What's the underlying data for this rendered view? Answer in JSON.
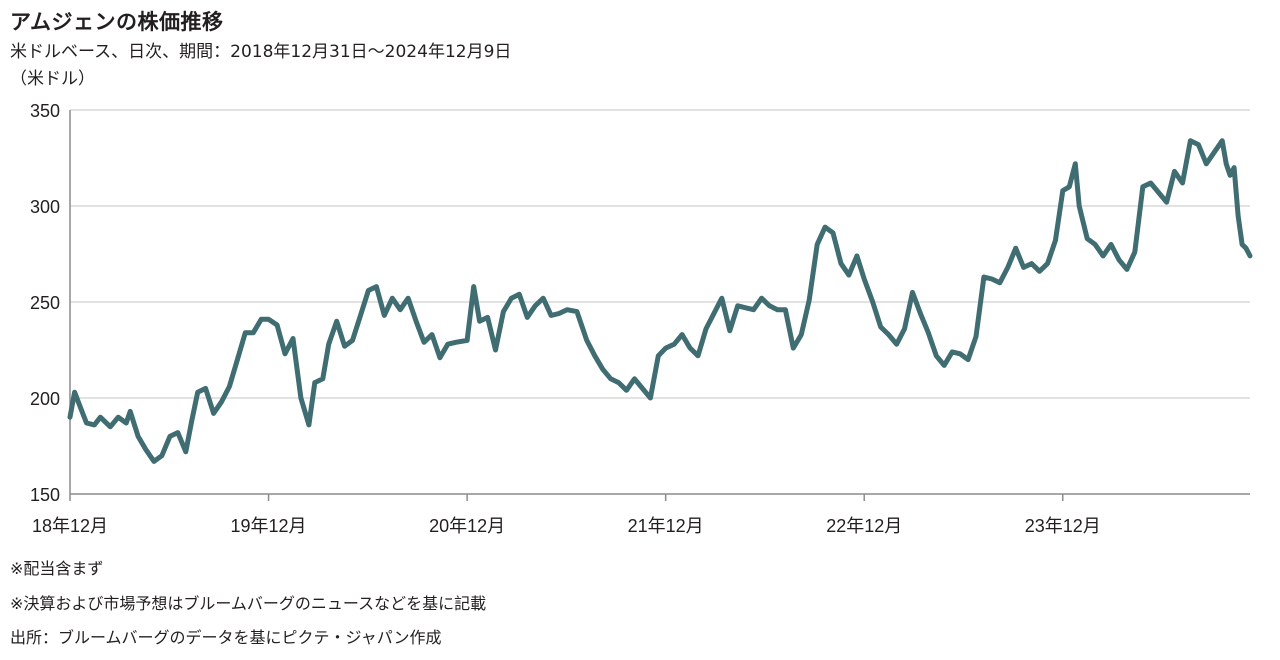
{
  "chart_data": {
    "type": "line",
    "title": "アムジェンの株価推移",
    "subtitle": "米ドルベース、日次、期間：2018年12月31日〜2024年12月9日",
    "ylabel": "（米ドル）",
    "xlabel": "",
    "ylim": [
      150,
      350
    ],
    "yticks": [
      150,
      200,
      250,
      300,
      350
    ],
    "xlim": [
      2018.997,
      2024.94
    ],
    "xticks": [
      {
        "pos": 2018.997,
        "label": "18年12月"
      },
      {
        "pos": 2019.997,
        "label": "19年12月"
      },
      {
        "pos": 2020.997,
        "label": "20年12月"
      },
      {
        "pos": 2021.997,
        "label": "21年12月"
      },
      {
        "pos": 2022.997,
        "label": "22年12月"
      },
      {
        "pos": 2023.997,
        "label": "23年12月"
      }
    ],
    "grid": "horizontal",
    "colors": {
      "line": "#3f6d72",
      "grid": "#d9d9d9",
      "axis": "#8c8c8c"
    },
    "series": [
      {
        "name": "",
        "points": [
          [
            2018.997,
            190
          ],
          [
            2019.02,
            203
          ],
          [
            2019.05,
            195
          ],
          [
            2019.08,
            187
          ],
          [
            2019.12,
            186
          ],
          [
            2019.15,
            190
          ],
          [
            2019.2,
            185
          ],
          [
            2019.24,
            190
          ],
          [
            2019.28,
            187
          ],
          [
            2019.3,
            193
          ],
          [
            2019.34,
            180
          ],
          [
            2019.38,
            173
          ],
          [
            2019.42,
            167
          ],
          [
            2019.46,
            170
          ],
          [
            2019.5,
            180
          ],
          [
            2019.54,
            182
          ],
          [
            2019.58,
            172
          ],
          [
            2019.61,
            188
          ],
          [
            2019.64,
            203
          ],
          [
            2019.68,
            205
          ],
          [
            2019.72,
            192
          ],
          [
            2019.76,
            198
          ],
          [
            2019.8,
            206
          ],
          [
            2019.84,
            220
          ],
          [
            2019.88,
            234
          ],
          [
            2019.92,
            234
          ],
          [
            2019.96,
            241
          ],
          [
            2019.997,
            241
          ],
          [
            2020.04,
            238
          ],
          [
            2020.08,
            223
          ],
          [
            2020.12,
            231
          ],
          [
            2020.16,
            200
          ],
          [
            2020.2,
            186
          ],
          [
            2020.23,
            208
          ],
          [
            2020.27,
            210
          ],
          [
            2020.3,
            228
          ],
          [
            2020.34,
            240
          ],
          [
            2020.38,
            227
          ],
          [
            2020.42,
            230
          ],
          [
            2020.46,
            243
          ],
          [
            2020.5,
            256
          ],
          [
            2020.54,
            258
          ],
          [
            2020.58,
            243
          ],
          [
            2020.62,
            252
          ],
          [
            2020.66,
            246
          ],
          [
            2020.7,
            252
          ],
          [
            2020.74,
            240
          ],
          [
            2020.78,
            229
          ],
          [
            2020.82,
            233
          ],
          [
            2020.86,
            221
          ],
          [
            2020.9,
            228
          ],
          [
            2020.94,
            229
          ],
          [
            2020.997,
            230
          ],
          [
            2021.03,
            258
          ],
          [
            2021.06,
            240
          ],
          [
            2021.1,
            242
          ],
          [
            2021.14,
            225
          ],
          [
            2021.18,
            245
          ],
          [
            2021.22,
            252
          ],
          [
            2021.26,
            254
          ],
          [
            2021.3,
            242
          ],
          [
            2021.34,
            248
          ],
          [
            2021.38,
            252
          ],
          [
            2021.42,
            243
          ],
          [
            2021.46,
            244
          ],
          [
            2021.5,
            246
          ],
          [
            2021.55,
            245
          ],
          [
            2021.6,
            230
          ],
          [
            2021.64,
            222
          ],
          [
            2021.68,
            215
          ],
          [
            2021.72,
            210
          ],
          [
            2021.76,
            208
          ],
          [
            2021.8,
            204
          ],
          [
            2021.84,
            210
          ],
          [
            2021.88,
            205
          ],
          [
            2021.92,
            200
          ],
          [
            2021.96,
            222
          ],
          [
            2021.997,
            226
          ],
          [
            2022.04,
            228
          ],
          [
            2022.08,
            233
          ],
          [
            2022.12,
            226
          ],
          [
            2022.16,
            222
          ],
          [
            2022.2,
            236
          ],
          [
            2022.24,
            244
          ],
          [
            2022.28,
            252
          ],
          [
            2022.32,
            235
          ],
          [
            2022.36,
            248
          ],
          [
            2022.4,
            247
          ],
          [
            2022.44,
            246
          ],
          [
            2022.48,
            252
          ],
          [
            2022.52,
            248
          ],
          [
            2022.56,
            246
          ],
          [
            2022.6,
            246
          ],
          [
            2022.64,
            226
          ],
          [
            2022.68,
            233
          ],
          [
            2022.72,
            251
          ],
          [
            2022.76,
            280
          ],
          [
            2022.8,
            289
          ],
          [
            2022.84,
            286
          ],
          [
            2022.88,
            270
          ],
          [
            2022.92,
            264
          ],
          [
            2022.96,
            274
          ],
          [
            2022.997,
            262
          ],
          [
            2023.04,
            250
          ],
          [
            2023.08,
            237
          ],
          [
            2023.12,
            233
          ],
          [
            2023.16,
            228
          ],
          [
            2023.2,
            236
          ],
          [
            2023.24,
            255
          ],
          [
            2023.28,
            244
          ],
          [
            2023.32,
            234
          ],
          [
            2023.36,
            222
          ],
          [
            2023.4,
            217
          ],
          [
            2023.44,
            224
          ],
          [
            2023.48,
            223
          ],
          [
            2023.52,
            220
          ],
          [
            2023.56,
            232
          ],
          [
            2023.6,
            263
          ],
          [
            2023.64,
            262
          ],
          [
            2023.68,
            260
          ],
          [
            2023.72,
            268
          ],
          [
            2023.76,
            278
          ],
          [
            2023.8,
            268
          ],
          [
            2023.84,
            270
          ],
          [
            2023.88,
            266
          ],
          [
            2023.92,
            270
          ],
          [
            2023.96,
            282
          ],
          [
            2023.997,
            308
          ],
          [
            2024.03,
            310
          ],
          [
            2024.06,
            322
          ],
          [
            2024.08,
            300
          ],
          [
            2024.12,
            283
          ],
          [
            2024.16,
            280
          ],
          [
            2024.2,
            274
          ],
          [
            2024.24,
            280
          ],
          [
            2024.28,
            272
          ],
          [
            2024.32,
            267
          ],
          [
            2024.36,
            276
          ],
          [
            2024.4,
            310
          ],
          [
            2024.44,
            312
          ],
          [
            2024.48,
            307
          ],
          [
            2024.52,
            302
          ],
          [
            2024.56,
            318
          ],
          [
            2024.6,
            312
          ],
          [
            2024.64,
            334
          ],
          [
            2024.68,
            332
          ],
          [
            2024.72,
            322
          ],
          [
            2024.76,
            328
          ],
          [
            2024.8,
            334
          ],
          [
            2024.82,
            322
          ],
          [
            2024.84,
            316
          ],
          [
            2024.86,
            320
          ],
          [
            2024.88,
            295
          ],
          [
            2024.9,
            280
          ],
          [
            2024.92,
            278
          ],
          [
            2024.94,
            274
          ]
        ]
      }
    ]
  },
  "notes": {
    "note1": "※配当含まず",
    "note2": "※決算および市場予想はブルームバーグのニュースなどを基に記載",
    "source": "出所：ブルームバーグのデータを基にピクテ・ジャパン作成"
  }
}
